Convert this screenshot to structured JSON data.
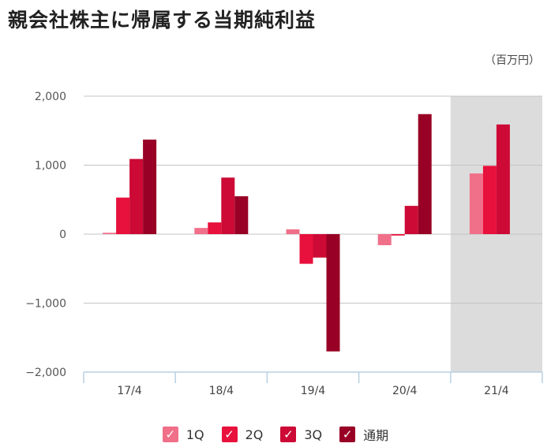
{
  "title": "親会社株主に帰属する当期純利益",
  "unit": "（百万円）",
  "legend": [
    {
      "label": "1Q",
      "color": "#f0708a"
    },
    {
      "label": "2Q",
      "color": "#e8103c"
    },
    {
      "label": "3Q",
      "color": "#cc0a35"
    },
    {
      "label": "通期",
      "color": "#980025"
    }
  ],
  "checkmark": "✓",
  "chart_data": {
    "type": "bar",
    "categories": [
      "17/4",
      "18/4",
      "19/4",
      "20/4",
      "21/4"
    ],
    "series": [
      {
        "name": "1Q",
        "values": [
          20,
          90,
          70,
          -160,
          880
        ]
      },
      {
        "name": "2Q",
        "values": [
          530,
          170,
          -430,
          -20,
          990
        ]
      },
      {
        "name": "3Q",
        "values": [
          1090,
          820,
          -340,
          410,
          1590
        ]
      },
      {
        "name": "通期",
        "values": [
          1370,
          550,
          -1700,
          1740,
          null
        ]
      }
    ],
    "y_ticks": [
      2000,
      1000,
      0,
      -1000,
      -2000
    ],
    "y_tick_labels": [
      "2,000",
      "1,000",
      "0",
      "−1,000",
      "−2,000"
    ],
    "ylim": [
      -2000,
      2000
    ],
    "highlighted_category": "21/4",
    "highlight_color": "#dcdcdc",
    "grid": true,
    "legend_position": "bottom"
  }
}
